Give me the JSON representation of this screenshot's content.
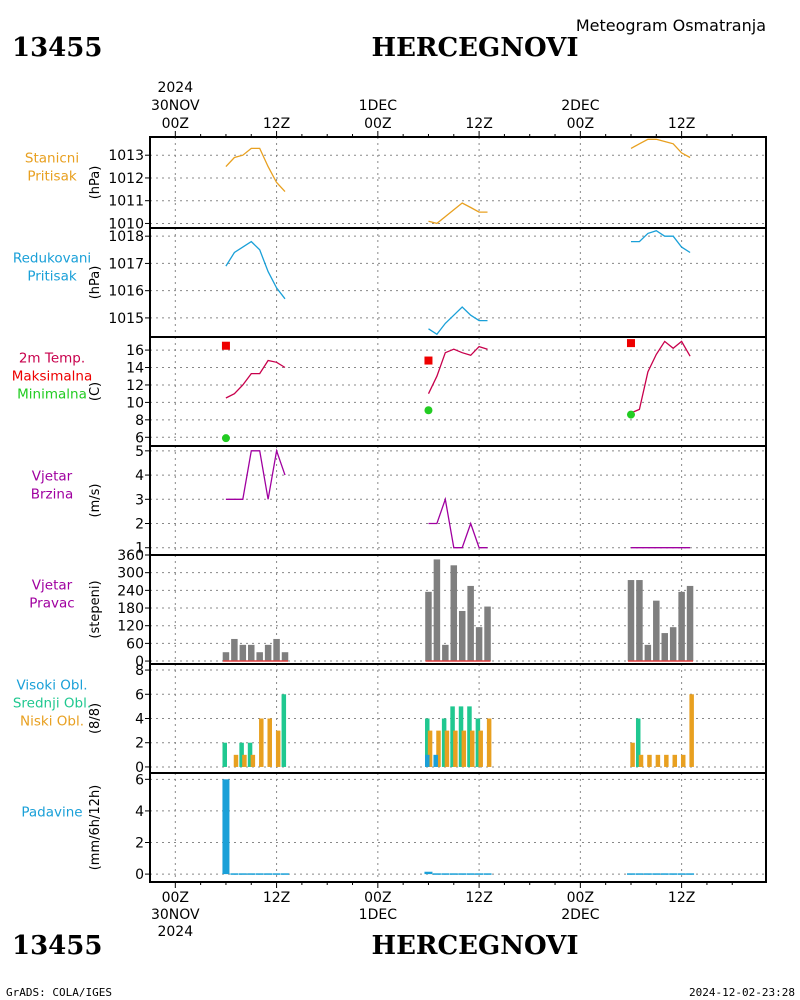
{
  "header": {
    "station_code": "13455",
    "station_name": "HERCEGNOVI",
    "caption": "Meteogram Osmatranja"
  },
  "time_axis": {
    "top_year": "2024",
    "top_labels": [
      {
        "hour": 0,
        "lines": [
          "30NOV",
          "00Z"
        ]
      },
      {
        "hour": 12,
        "lines": [
          "12Z"
        ]
      },
      {
        "hour": 24,
        "lines": [
          "1DEC",
          "00Z"
        ]
      },
      {
        "hour": 36,
        "lines": [
          "12Z"
        ]
      },
      {
        "hour": 48,
        "lines": [
          "2DEC",
          "00Z"
        ]
      },
      {
        "hour": 60,
        "lines": [
          "12Z"
        ]
      }
    ],
    "bottom_labels": [
      {
        "hour": 0,
        "lines": [
          "00Z",
          "30NOV",
          "2024"
        ]
      },
      {
        "hour": 12,
        "lines": [
          "12Z"
        ]
      },
      {
        "hour": 24,
        "lines": [
          "00Z",
          "1DEC"
        ]
      },
      {
        "hour": 36,
        "lines": [
          "12Z"
        ]
      },
      {
        "hour": 48,
        "lines": [
          "00Z",
          "2DEC"
        ]
      },
      {
        "hour": 60,
        "lines": [
          "12Z"
        ]
      }
    ],
    "range_hours": [
      -3,
      70
    ]
  },
  "footer": {
    "left": "GrADS: COLA/IGES",
    "right": "2024-12-02-23:28"
  },
  "colors": {
    "pressure_station": "#e8a020",
    "pressure_reduced": "#1aa0d8",
    "temperature": "#c8004c",
    "tmax": "#ee0000",
    "tmin": "#22cc22",
    "wind": "#a000a0",
    "direction_bar": "#7f7f7f",
    "direction_baseline": "#e04040",
    "cloud_high": "#1aa0d8",
    "cloud_mid": "#20c890",
    "cloud_low": "#e8a020",
    "precip": "#1aa0d8"
  },
  "chart_data": [
    {
      "type": "line",
      "panel": "stanicni_pritisak",
      "labels": [
        "Stanicni",
        "Pritisak"
      ],
      "label_color": "#e8a020",
      "ylabel": "(hPa)",
      "ylim": [
        1009.8,
        1013.8
      ],
      "yticks": [
        1010,
        1011,
        1012,
        1013
      ],
      "grid": true,
      "series": [
        {
          "x": [
            6,
            7,
            8,
            9,
            10,
            11,
            12,
            13
          ],
          "y": [
            1012.5,
            1012.9,
            1013.0,
            1013.3,
            1013.3,
            1012.5,
            1011.8,
            1011.4
          ]
        },
        {
          "x": [
            30,
            31,
            32,
            33,
            34,
            35,
            36,
            37
          ],
          "y": [
            1010.1,
            1010.0,
            1010.3,
            1010.6,
            1010.9,
            1010.7,
            1010.5,
            1010.5
          ]
        },
        {
          "x": [
            54,
            55,
            56,
            57,
            58,
            59,
            60,
            61
          ],
          "y": [
            1013.3,
            1013.5,
            1013.7,
            1013.7,
            1013.6,
            1013.5,
            1013.1,
            1012.9
          ]
        }
      ]
    },
    {
      "type": "line",
      "panel": "redukovani_pritisak",
      "labels": [
        "Redukovani",
        "Pritisak"
      ],
      "label_color": "#1aa0d8",
      "ylabel": "(hPa)",
      "ylim": [
        1014.3,
        1018.3
      ],
      "yticks": [
        1015,
        1016,
        1017,
        1018
      ],
      "grid": true,
      "series": [
        {
          "x": [
            6,
            7,
            8,
            9,
            10,
            11,
            12,
            13
          ],
          "y": [
            1016.9,
            1017.4,
            1017.6,
            1017.8,
            1017.5,
            1016.7,
            1016.1,
            1015.7
          ]
        },
        {
          "x": [
            30,
            31,
            32,
            33,
            34,
            35,
            36,
            37
          ],
          "y": [
            1014.6,
            1014.4,
            1014.8,
            1015.1,
            1015.4,
            1015.1,
            1014.9,
            1014.9
          ]
        },
        {
          "x": [
            54,
            55,
            56,
            57,
            58,
            59,
            60,
            61
          ],
          "y": [
            1017.8,
            1017.8,
            1018.1,
            1018.2,
            1018.0,
            1018.0,
            1017.6,
            1017.4
          ]
        }
      ]
    },
    {
      "type": "line",
      "panel": "temperatura",
      "labels": [
        "2m Temp.",
        "Maksimalna",
        "Minimalna"
      ],
      "label_colors": [
        "#c8004c",
        "#ee0000",
        "#22cc22"
      ],
      "ylabel": "(C)",
      "ylim": [
        5,
        17.5
      ],
      "yticks": [
        6,
        8,
        10,
        12,
        14,
        16
      ],
      "grid": true,
      "series": [
        {
          "name": "2m Temp.",
          "x": [
            6,
            7,
            8,
            9,
            10,
            11,
            12,
            13
          ],
          "y": [
            10.5,
            11.0,
            12.0,
            13.3,
            13.3,
            14.8,
            14.6,
            14.0
          ]
        },
        {
          "name": "2m Temp.",
          "x": [
            30,
            31,
            32,
            33,
            34,
            35,
            36,
            37
          ],
          "y": [
            11.0,
            13.0,
            15.7,
            16.1,
            15.7,
            15.4,
            16.4,
            16.1
          ]
        },
        {
          "name": "2m Temp.",
          "x": [
            54,
            55,
            56,
            57,
            58,
            59,
            60,
            61
          ],
          "y": [
            8.8,
            9.2,
            13.5,
            15.5,
            17.0,
            16.2,
            17.0,
            15.3
          ]
        }
      ],
      "maxima": {
        "name": "Maksimalna",
        "x": [
          6,
          30,
          54
        ],
        "y": [
          16.5,
          14.8,
          16.8
        ]
      },
      "minima": {
        "name": "Minimalna",
        "x": [
          6,
          30,
          54
        ],
        "y": [
          5.9,
          9.1,
          8.6
        ]
      }
    },
    {
      "type": "line",
      "panel": "vjetar_brzina",
      "labels": [
        "Vjetar",
        "Brzina"
      ],
      "label_color": "#a000a0",
      "ylabel": "(m/s)",
      "ylim": [
        0.7,
        5.2
      ],
      "yticks": [
        1,
        2,
        3,
        4,
        5
      ],
      "grid": true,
      "series": [
        {
          "x": [
            6,
            7,
            8,
            9,
            10,
            11,
            12,
            13
          ],
          "y": [
            3,
            3,
            3,
            5,
            5,
            3,
            5,
            4
          ]
        },
        {
          "x": [
            30,
            31,
            32,
            33,
            34,
            35,
            36,
            37
          ],
          "y": [
            2,
            2,
            3,
            1,
            1,
            2,
            1,
            1
          ]
        },
        {
          "x": [
            54,
            55,
            56,
            57,
            58,
            59,
            60,
            61
          ],
          "y": [
            1,
            1,
            1,
            1,
            1,
            1,
            1,
            1
          ]
        }
      ]
    },
    {
      "type": "bar",
      "panel": "vjetar_pravac",
      "labels": [
        "Vjetar",
        "Pravac"
      ],
      "label_color": "#a000a0",
      "ylabel": "(stepeni)",
      "ylim": [
        -10,
        360
      ],
      "yticks": [
        0,
        60,
        120,
        180,
        240,
        300,
        360
      ],
      "tick_labels": [
        "0",
        "60",
        "120",
        "180",
        "240",
        "300",
        "360"
      ],
      "grid": true,
      "x": [
        6,
        7,
        8,
        9,
        10,
        11,
        12,
        13,
        30,
        31,
        32,
        33,
        34,
        35,
        36,
        37,
        54,
        55,
        56,
        57,
        58,
        59,
        60,
        61
      ],
      "values": [
        30,
        75,
        55,
        55,
        30,
        55,
        75,
        30,
        235,
        345,
        55,
        325,
        170,
        255,
        115,
        185,
        275,
        275,
        55,
        205,
        95,
        115,
        235,
        255
      ]
    },
    {
      "type": "bar",
      "panel": "oblaci",
      "labels": [
        "Visoki Obl.",
        "Srednji Obl.",
        "Niski Obl."
      ],
      "label_colors": [
        "#1aa0d8",
        "#20c890",
        "#e8a020"
      ],
      "ylabel": "(8/8)",
      "ylim": [
        -0.5,
        8.5
      ],
      "yticks": [
        0,
        2,
        4,
        6,
        8
      ],
      "grid": true,
      "x": [
        6,
        7,
        8,
        9,
        10,
        11,
        12,
        13,
        30,
        31,
        32,
        33,
        34,
        35,
        36,
        37,
        54,
        55,
        56,
        57,
        58,
        59,
        60,
        61
      ],
      "series": [
        {
          "name": "Visoki Obl.",
          "values": [
            0,
            0,
            0,
            0,
            0,
            0,
            0,
            0,
            1,
            1,
            0,
            0,
            0,
            0,
            0,
            0,
            0,
            0,
            0,
            0,
            0,
            0,
            0,
            0
          ]
        },
        {
          "name": "Srednji Obl.",
          "values": [
            2,
            0,
            2,
            2,
            0,
            0,
            0,
            6,
            4,
            0,
            4,
            5,
            5,
            5,
            4,
            0,
            0,
            4,
            0,
            0,
            0,
            0,
            0,
            0
          ]
        },
        {
          "name": "Niski Obl.",
          "values": [
            0,
            1,
            1,
            1,
            4,
            4,
            3,
            0,
            3,
            3,
            3,
            3,
            3,
            3,
            3,
            4,
            2,
            1,
            1,
            1,
            1,
            1,
            1,
            6
          ]
        }
      ]
    },
    {
      "type": "bar",
      "panel": "padavine",
      "labels": [
        "Padavine"
      ],
      "label_color": "#1aa0d8",
      "ylabel": "(mm/6h/12h)",
      "ylim": [
        -0.5,
        6.4
      ],
      "yticks": [
        0,
        2,
        4,
        6
      ],
      "grid": true,
      "x": [
        6,
        7,
        8,
        9,
        10,
        11,
        12,
        13,
        30,
        31,
        32,
        33,
        34,
        35,
        36,
        37,
        54,
        55,
        56,
        57,
        58,
        59,
        60,
        61
      ],
      "values": [
        6.0,
        0.05,
        0.05,
        0.05,
        0.05,
        0.05,
        0.05,
        0.05,
        0.15,
        0.05,
        0.05,
        0.05,
        0.05,
        0.05,
        0.05,
        0.05,
        0.05,
        0.05,
        0.05,
        0.05,
        0.05,
        0.05,
        0.05,
        0.05
      ]
    }
  ]
}
